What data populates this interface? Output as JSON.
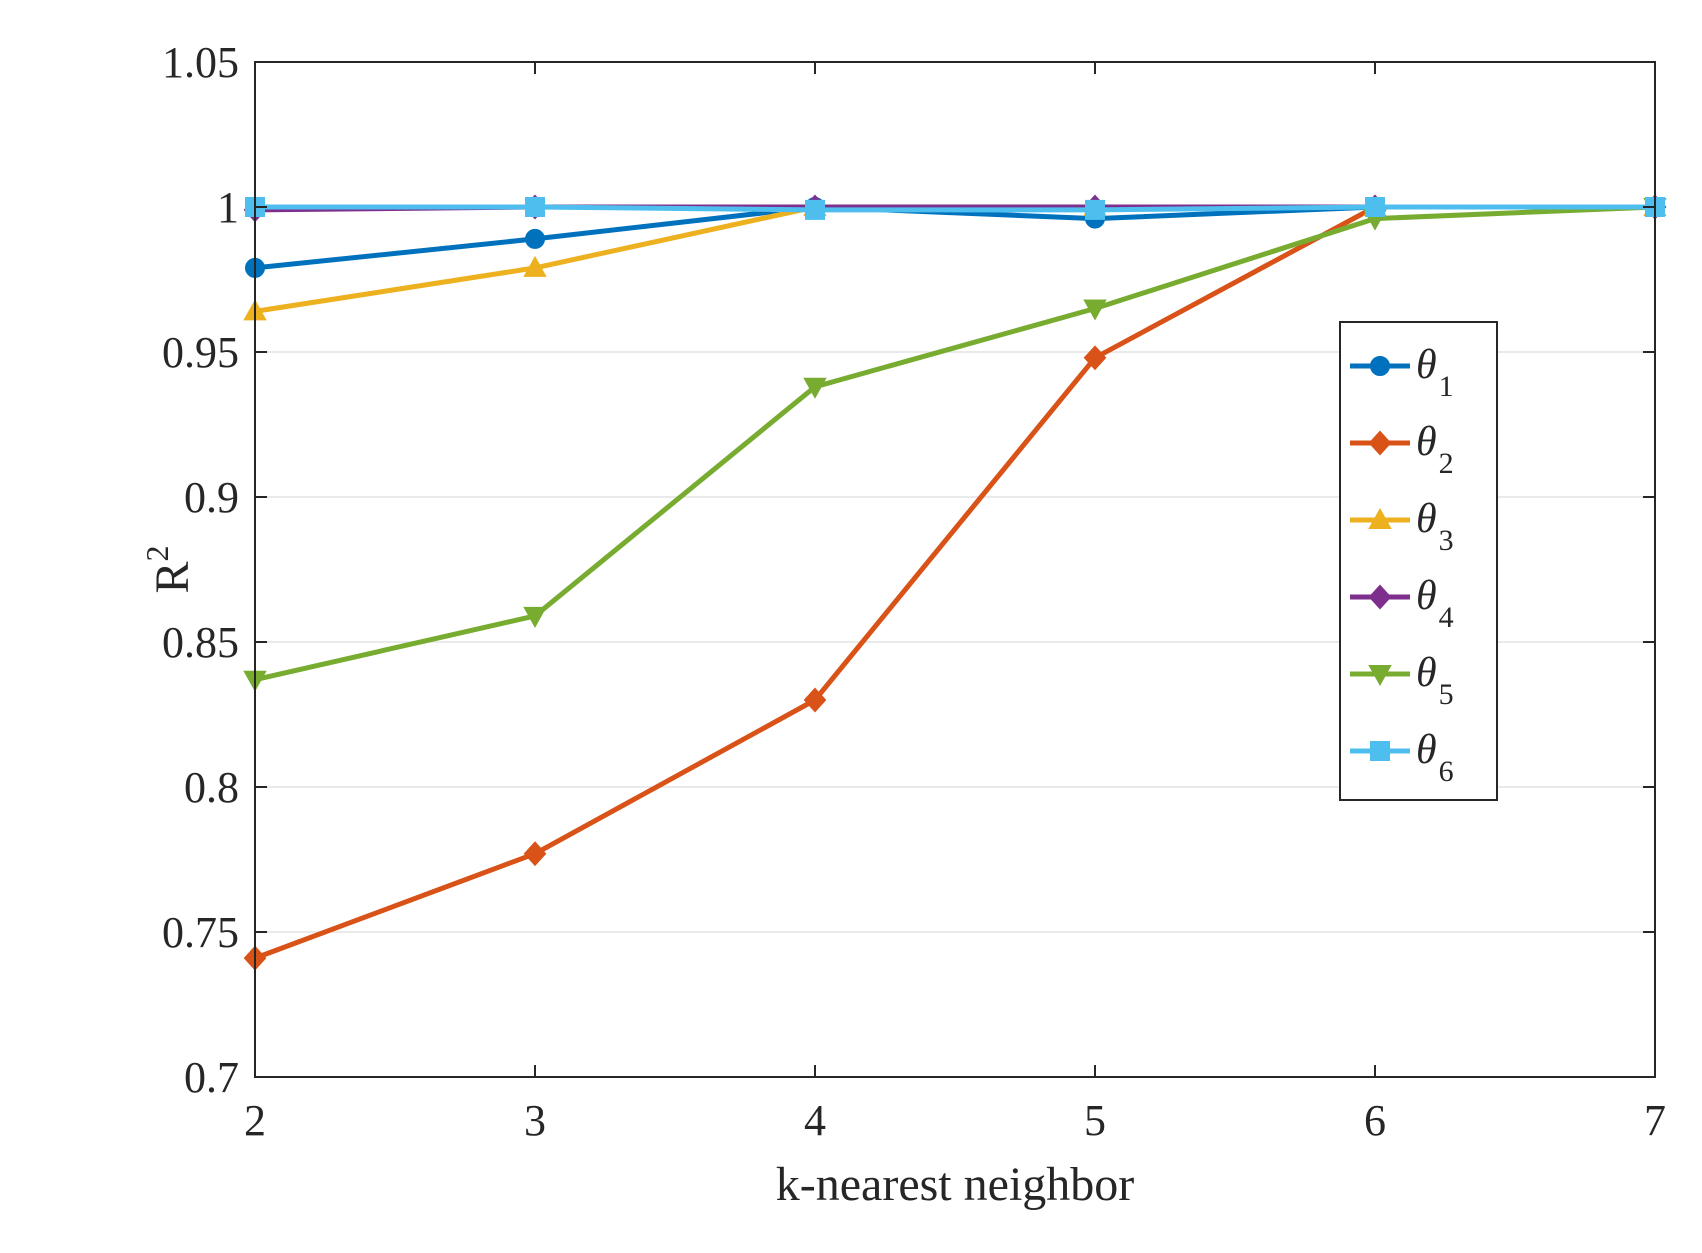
{
  "chart_data": {
    "type": "line",
    "title": "",
    "xlabel": "k-nearest neighbor",
    "ylabel": "R",
    "ylabel_superscript": "2",
    "x": [
      2,
      3,
      4,
      5,
      6,
      7
    ],
    "xlim": [
      2,
      7
    ],
    "ylim": [
      0.7,
      1.05
    ],
    "xticks": [
      "2",
      "3",
      "4",
      "5",
      "6",
      "7"
    ],
    "yticks": [
      "0.7",
      "0.75",
      "0.8",
      "0.85",
      "0.9",
      "0.95",
      "1",
      "1.05"
    ],
    "ytick_values": [
      0.7,
      0.75,
      0.8,
      0.85,
      0.9,
      0.95,
      1.0,
      1.05
    ],
    "grid": "horizontal",
    "legend_position": "right",
    "series": [
      {
        "name": "θ",
        "subscript": "1",
        "color": "#0072BD",
        "marker": "circle",
        "values": [
          0.979,
          0.989,
          1.0,
          0.996,
          1.0,
          1.0
        ]
      },
      {
        "name": "θ",
        "subscript": "2",
        "color": "#D95319",
        "marker": "diamond",
        "values": [
          0.741,
          0.777,
          0.83,
          0.948,
          1.0,
          1.0
        ]
      },
      {
        "name": "θ",
        "subscript": "3",
        "color": "#EDB120",
        "marker": "triangle-up",
        "values": [
          0.964,
          0.979,
          1.0,
          1.0,
          1.0,
          1.0
        ]
      },
      {
        "name": "θ",
        "subscript": "4",
        "color": "#7E2F8E",
        "marker": "diamond",
        "values": [
          0.999,
          1.0,
          1.0,
          1.0,
          1.0,
          1.0
        ]
      },
      {
        "name": "θ",
        "subscript": "5",
        "color": "#77AC30",
        "marker": "triangle-down",
        "values": [
          0.837,
          0.859,
          0.938,
          0.965,
          0.996,
          1.0
        ]
      },
      {
        "name": "θ",
        "subscript": "6",
        "color": "#4DBEEE",
        "marker": "square",
        "values": [
          1.0,
          1.0,
          0.999,
          0.999,
          1.0,
          1.0
        ]
      }
    ]
  }
}
